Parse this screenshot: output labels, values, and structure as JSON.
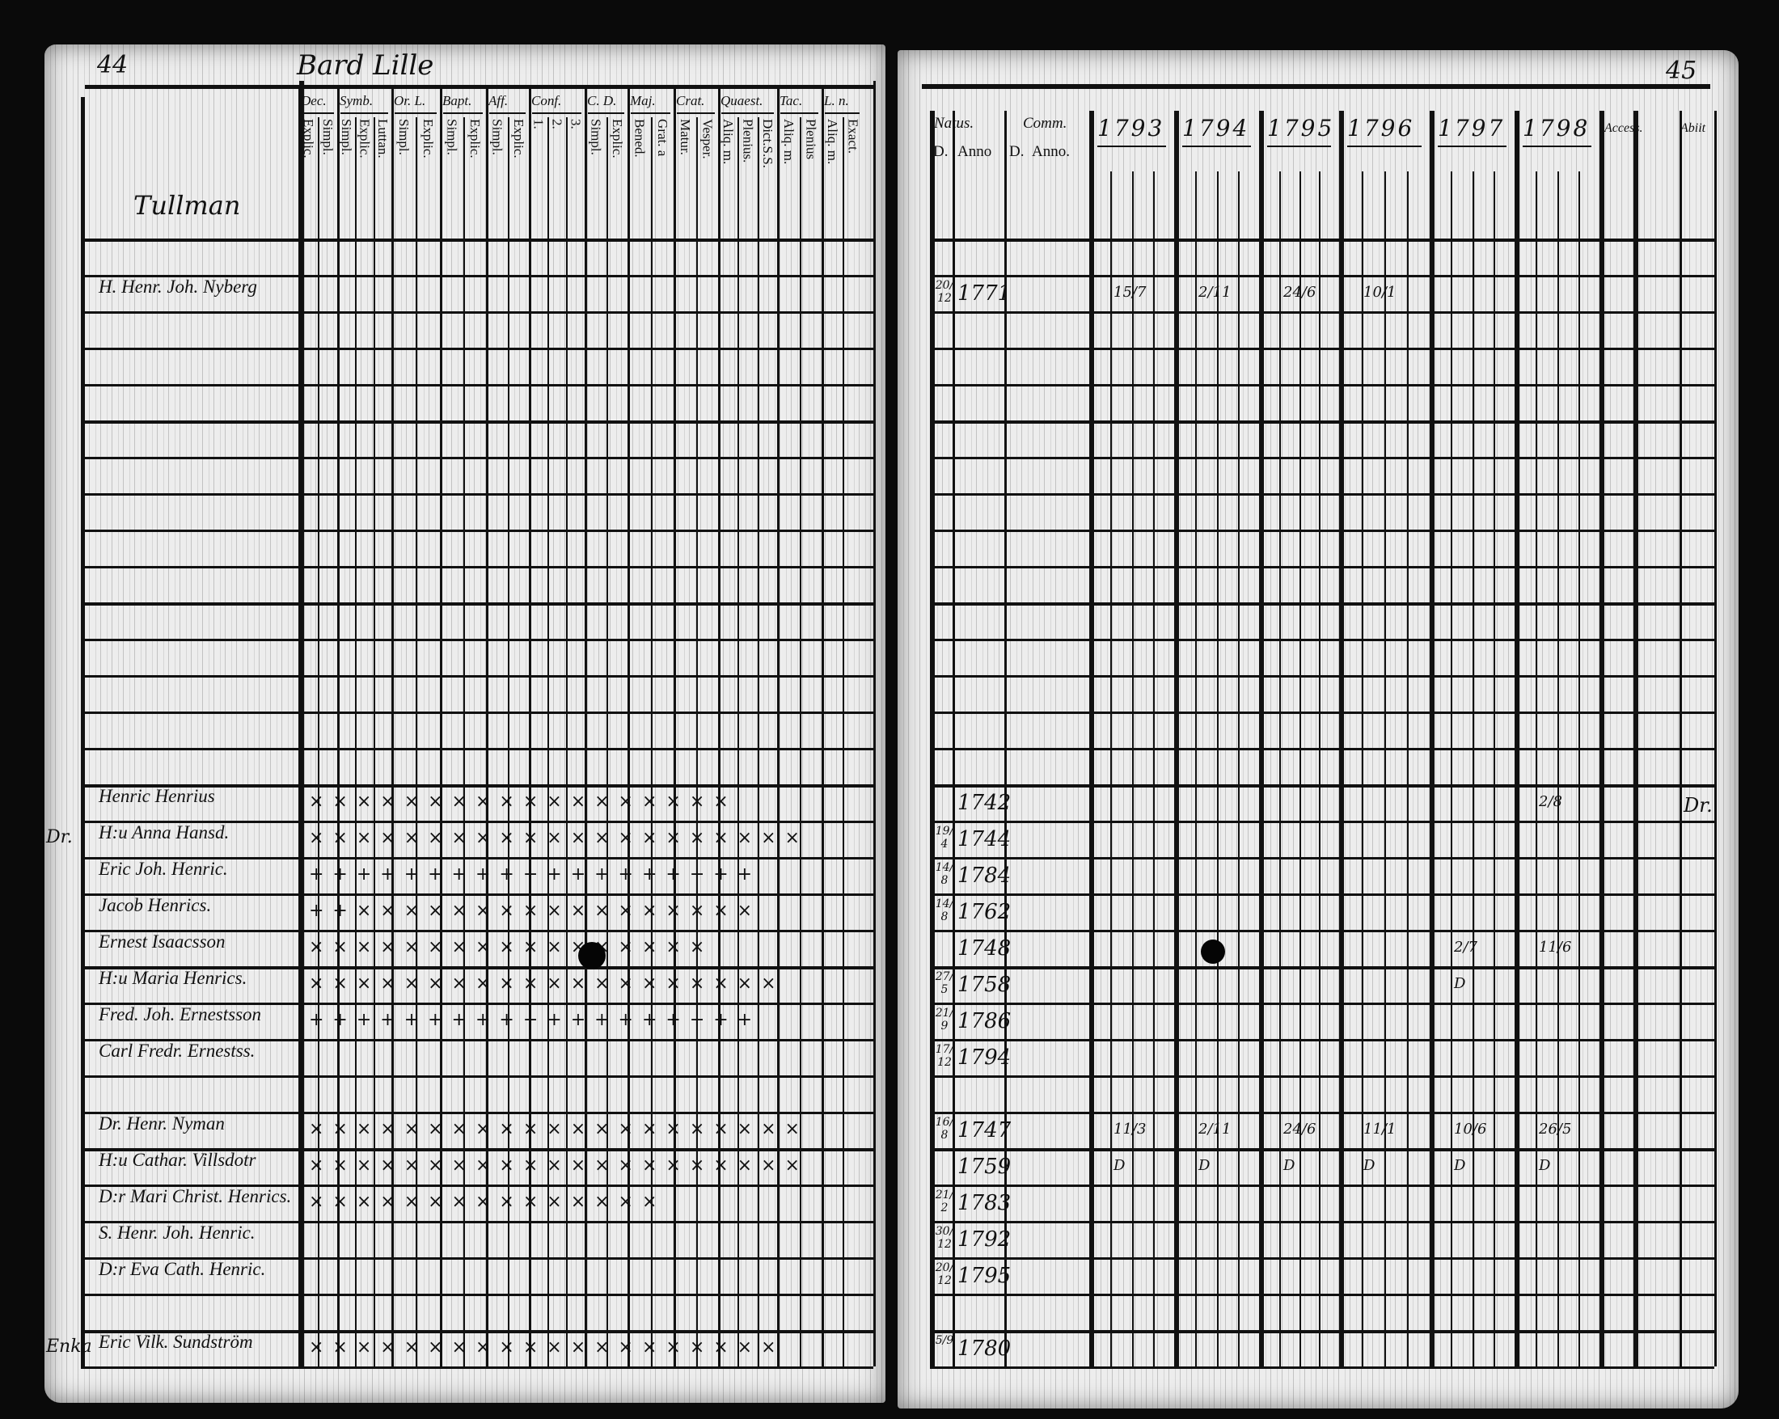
{
  "left_page": {
    "page_number": "44",
    "place_title": "Bard Lille",
    "column_groups": [
      {
        "label": "Dec.",
        "sub": [
          "Explic.",
          "Simpl."
        ]
      },
      {
        "label": "Symb.",
        "sub": [
          "Simpl.",
          "Explic.",
          "Luttan."
        ]
      },
      {
        "label": "Or. L.",
        "sub": [
          "Simpl.",
          "Explic."
        ]
      },
      {
        "label": "Bapt.",
        "sub": [
          "Simpl.",
          "Explic."
        ]
      },
      {
        "label": "Aff.",
        "sub": [
          "Simpl.",
          "Explic."
        ]
      },
      {
        "label": "Conf.",
        "sub": [
          "1.",
          "2.",
          "3."
        ]
      },
      {
        "label": "C. D.",
        "sub": [
          "Simpl.",
          "Explic."
        ]
      },
      {
        "label": "Maj.",
        "sub": [
          "Bened.",
          "Grat. a"
        ]
      },
      {
        "label": "Crat.",
        "sub": [
          "Matur.",
          "Vesper."
        ]
      },
      {
        "label": "Quaest.",
        "sub": [
          "Aliq. m.",
          "Plenius.",
          "Dict.S.S."
        ]
      },
      {
        "label": "Tac.",
        "sub": [
          "Aliq. m.",
          "Plenius"
        ]
      },
      {
        "label": "L. n.",
        "sub": [
          "Aliq. m.",
          "Exact."
        ]
      }
    ],
    "heading_entry": "Tullman",
    "rows": [
      {
        "row": 1,
        "margin": "",
        "name": "H. Henr. Joh. Nyberg",
        "marks": ""
      },
      {
        "row": 15,
        "margin": "",
        "name": "Henric Henrius",
        "marks": "× × × × ×  × × × ×   × × × × × × × ×       ×"
      },
      {
        "row": 16,
        "margin": "Dr.",
        "name": "H:u Anna Hansd.",
        "marks": "× × × × × × × × ×  × × × × × × × × ×  × × ×"
      },
      {
        "row": 17,
        "margin": "",
        "name": "Eric Joh. Henric.",
        "marks": "+ + + + +  + +  +   + + + + + + + + +  + +"
      },
      {
        "row": 18,
        "margin": "",
        "name": "Jacob Henrics.",
        "marks": "+ + × × × × × × ×  × × × × × × × × × ×"
      },
      {
        "row": 19,
        "margin": "",
        "name": "Ernest Isaacsson",
        "marks": "× × × × × × × ×   × × × × × × × ×       ×"
      },
      {
        "row": 20,
        "margin": "",
        "name": "H:u Maria Henrics.",
        "marks": "× × × × × × × ×   × × × × × × × × ×  × × ×"
      },
      {
        "row": 21,
        "margin": "",
        "name": "Fred. Joh. Ernestsson",
        "marks": "+ +  + +  + +  + +   + + + + + + + +    + + +"
      },
      {
        "row": 22,
        "margin": "",
        "name": "Carl Fredr. Ernestss.",
        "marks": ""
      },
      {
        "row": 24,
        "margin": "",
        "name": "Dr. Henr. Nyman",
        "marks": "× × × × × × × × ×  × × × × × × × × ×  × × ×"
      },
      {
        "row": 25,
        "margin": "",
        "name": "H:u Cathar. Villsdotr",
        "marks": "× × × × × × × × ×  × × × × × × × × ×  × × ×"
      },
      {
        "row": 26,
        "margin": "",
        "name": "D:r Mari Christ. Henrics.",
        "marks": "× × ×  × × × ×   × ×  × × × × ×         ×"
      },
      {
        "row": 27,
        "margin": "",
        "name": "S. Henr. Joh. Henric.",
        "marks": ""
      },
      {
        "row": 28,
        "margin": "",
        "name": "D:r Eva Cath. Henric.",
        "marks": ""
      },
      {
        "row": 30,
        "margin": "Enka",
        "name": "Eric Vilk. Sundström",
        "marks": "× × × × × × × × ×  × × × × × × × × ×  × ×"
      }
    ]
  },
  "right_page": {
    "page_number": "45",
    "headers": {
      "natus": "Natus.",
      "natus_d": "D.",
      "natus_anno": "Anno",
      "comm": "Comm.",
      "comm_d": "D.",
      "comm_anno": "Anno.",
      "years": [
        "1793",
        "1794",
        "1795",
        "1796",
        "1797",
        "1798"
      ],
      "accessit": "Access.",
      "abiit": "Abiit"
    },
    "rows": [
      {
        "row": 1,
        "day": "20/12",
        "year": "1771",
        "comm": [
          "15/7",
          "2/11",
          "24/6",
          "10/1",
          "",
          ""
        ]
      },
      {
        "row": 15,
        "day": "",
        "year": "1742",
        "comm": [
          "",
          "",
          "",
          "",
          "",
          "2/8"
        ]
      },
      {
        "row": 16,
        "day": "19/4",
        "year": "1744",
        "comm": [
          "",
          "",
          "",
          "",
          "",
          ""
        ]
      },
      {
        "row": 17,
        "day": "14/8",
        "year": "1784",
        "comm": [
          "",
          "",
          "",
          "",
          "",
          ""
        ]
      },
      {
        "row": 18,
        "day": "14/8",
        "year": "1762",
        "comm": [
          "",
          "",
          "",
          "",
          "",
          ""
        ]
      },
      {
        "row": 19,
        "day": "",
        "year": "1748",
        "comm": [
          "",
          "",
          "",
          "",
          "2/7",
          "11/6"
        ]
      },
      {
        "row": 20,
        "day": "27/5",
        "year": "1758",
        "comm": [
          "",
          "",
          "",
          "",
          "D",
          ""
        ]
      },
      {
        "row": 21,
        "day": "21/9",
        "year": "1786",
        "comm": [
          "",
          "",
          "",
          "",
          "",
          ""
        ]
      },
      {
        "row": 22,
        "day": "17/12",
        "year": "1794",
        "comm": [
          "",
          "",
          "",
          "",
          "",
          ""
        ]
      },
      {
        "row": 24,
        "day": "16/8",
        "year": "1747",
        "comm": [
          "11/3",
          "2/11",
          "24/6",
          "11/1",
          "10/6",
          "26/5"
        ]
      },
      {
        "row": 25,
        "day": "",
        "year": "1759",
        "comm": [
          "D",
          "D",
          "D",
          "D",
          "D",
          "D"
        ]
      },
      {
        "row": 26,
        "day": "21/2",
        "year": "1783",
        "comm": [
          "",
          "",
          "",
          "",
          "",
          ""
        ]
      },
      {
        "row": 27,
        "day": "30/12",
        "year": "1792",
        "comm": [
          "",
          "",
          "",
          "",
          "",
          ""
        ]
      },
      {
        "row": 28,
        "day": "20/12",
        "year": "1795",
        "comm": [
          "",
          "",
          "",
          "",
          "",
          ""
        ]
      },
      {
        "row": 30,
        "day": "5/9",
        "year": "1780",
        "comm": [
          "",
          "",
          "",
          "",
          "",
          ""
        ]
      }
    ],
    "abiit_note": "Dr."
  }
}
